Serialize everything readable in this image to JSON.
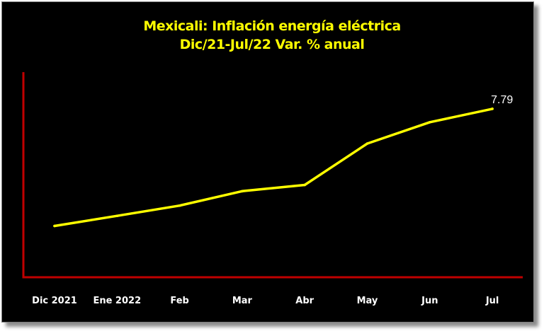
{
  "chart_data": {
    "type": "line",
    "title": "Mexicali: Inflación energía eléctrica",
    "subtitle": "Dic/21-Jul/22 Var. % anual",
    "categories": [
      "Dic 2021",
      "Ene 2022",
      "Feb",
      "Mar",
      "Abr",
      "May",
      "Jun",
      "Jul"
    ],
    "series": [
      {
        "values": [
          1.05,
          1.63,
          2.22,
          3.05,
          3.41,
          5.79,
          7.02,
          7.79
        ],
        "color": "#ffff00"
      }
    ],
    "data_labels": [
      {
        "index": 7,
        "text": "7.79"
      }
    ],
    "ylim": [
      -1.9,
      9.9
    ],
    "y_axis_visible": false,
    "grid": false,
    "legend": "none",
    "axis_color": "#c00000",
    "background": "#000000",
    "text_color": "#ffffff",
    "title_color": "#ffff00"
  }
}
